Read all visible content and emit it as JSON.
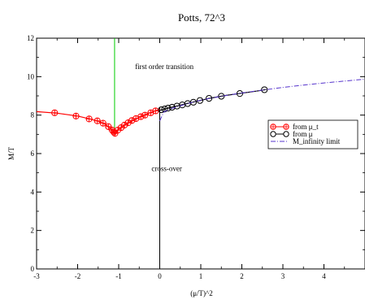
{
  "chart_data": {
    "type": "scatter",
    "title": "Potts, 72^3",
    "xlabel": "(μ/T)^2",
    "ylabel": "M/T",
    "xlim": [
      -3,
      5
    ],
    "ylim": [
      0,
      12
    ],
    "xticks": [
      -3,
      -2,
      -1,
      0,
      1,
      2,
      3,
      4
    ],
    "yticks": [
      0,
      2,
      4,
      6,
      8,
      10,
      12
    ],
    "xtick_labels": [
      "-3",
      "-2",
      "-1",
      "0",
      "1",
      "2",
      "3",
      "4"
    ],
    "ytick_labels": [
      "0",
      "2",
      "4",
      "6",
      "8",
      "10",
      "12"
    ],
    "grid": false,
    "legend_position": "right",
    "annotations": [
      {
        "text": "first order transition",
        "x": -0.6,
        "y": 10.4
      },
      {
        "text": "cross-over",
        "x": -0.2,
        "y": 5.1
      }
    ],
    "vertical_lines": [
      {
        "x": -1.1,
        "y_from": 7.2,
        "y_to": 12,
        "color": "#00cc00"
      },
      {
        "x": 0,
        "y_from": 0,
        "y_to": 8.4,
        "color": "#000000"
      }
    ],
    "series": [
      {
        "name": "from μ_t",
        "color": "#ff0000",
        "marker": "circle-plus",
        "x": [
          -2.56,
          -2.04,
          -1.72,
          -1.52,
          -1.38,
          -1.25,
          -1.16,
          -1.12,
          -1.09,
          -1.02,
          -0.94,
          -0.86,
          -0.77,
          -0.68,
          -0.58,
          -0.46,
          -0.36,
          -0.22,
          -0.1
        ],
        "y": [
          8.12,
          7.95,
          7.8,
          7.7,
          7.58,
          7.4,
          7.22,
          7.12,
          7.05,
          7.22,
          7.35,
          7.48,
          7.6,
          7.72,
          7.82,
          7.92,
          8.0,
          8.12,
          8.22
        ]
      },
      {
        "name": "from μ",
        "color": "#000000",
        "marker": "circle",
        "x": [
          0.04,
          0.12,
          0.2,
          0.3,
          0.42,
          0.55,
          0.68,
          0.82,
          0.98,
          1.2,
          1.5,
          1.95,
          2.55
        ],
        "y": [
          8.28,
          8.32,
          8.36,
          8.41,
          8.47,
          8.53,
          8.6,
          8.67,
          8.76,
          8.87,
          8.98,
          9.12,
          9.32
        ]
      },
      {
        "name": "M_infinity limit",
        "color": "#5533cc",
        "marker": "none",
        "dash": "dash-dot",
        "x": [
          0,
          0.1,
          0.3,
          0.6,
          1.0,
          1.5,
          2.0,
          2.5,
          3.0,
          3.5,
          4.0,
          4.5,
          5.0
        ],
        "y": [
          7.7,
          8.17,
          8.35,
          8.55,
          8.78,
          8.98,
          9.15,
          9.3,
          9.44,
          9.56,
          9.67,
          9.77,
          9.87
        ]
      }
    ],
    "fit_curves": [
      {
        "series": "from μ_t",
        "color": "#ff0000",
        "x": [
          -3,
          -2.5,
          -2.0,
          -1.7,
          -1.5,
          -1.35,
          -1.22,
          -1.14,
          -1.1,
          -1.05,
          -0.95,
          -0.8,
          -0.6,
          -0.4,
          -0.2,
          0
        ],
        "y": [
          8.18,
          8.1,
          7.95,
          7.8,
          7.68,
          7.55,
          7.35,
          7.15,
          7.05,
          7.18,
          7.34,
          7.55,
          7.78,
          7.98,
          8.15,
          8.3
        ]
      },
      {
        "series": "from μ",
        "color": "#000000",
        "x": [
          0,
          0.2,
          0.5,
          0.8,
          1.2,
          1.6,
          2.0,
          2.4,
          2.6
        ],
        "y": [
          8.25,
          8.36,
          8.52,
          8.67,
          8.87,
          9.02,
          9.14,
          9.26,
          9.33
        ]
      }
    ]
  }
}
